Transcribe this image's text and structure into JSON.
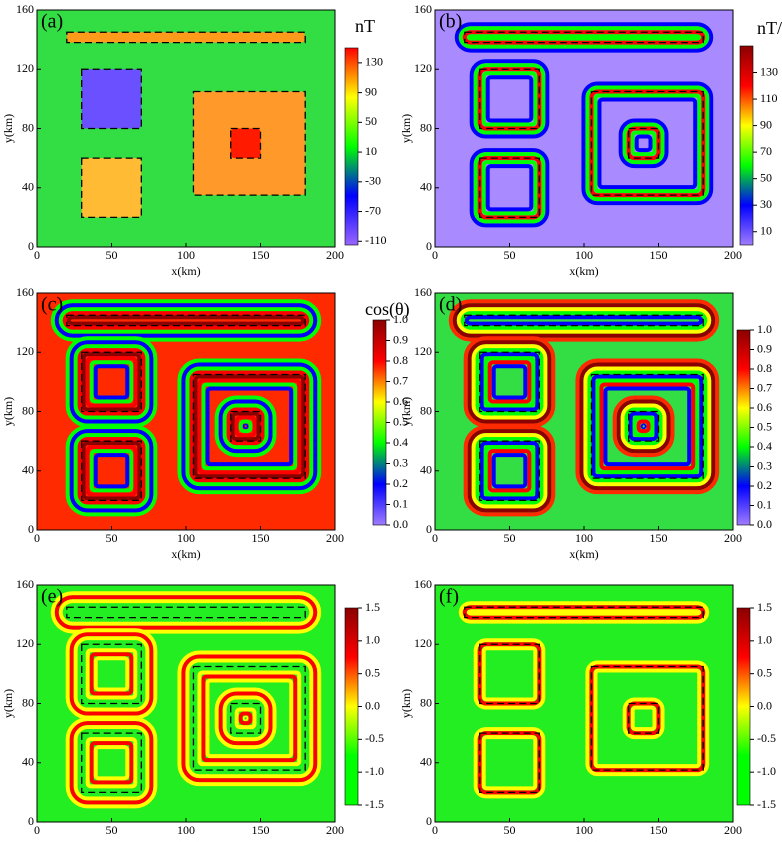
{
  "chart_data": [
    {
      "type": "heatmap",
      "label": "(a)",
      "colorbar_title": "nT",
      "xlabel": "x(km)",
      "ylabel": "y(km)",
      "xlim": [
        0,
        200
      ],
      "ylim": [
        0,
        160
      ],
      "xticks": [
        0,
        50,
        100,
        150,
        200
      ],
      "yticks": [
        0,
        40,
        80,
        120,
        160
      ],
      "clim": [
        -115,
        150
      ],
      "cticks": [
        -110,
        -70,
        -30,
        10,
        50,
        90,
        130
      ],
      "colormap": [
        "#9966ff",
        "#0000ff",
        "#00ff00",
        "#ffff00",
        "#ff0000"
      ],
      "background": "#33dd44",
      "outlines": [
        {
          "x": [
            20,
            180
          ],
          "y": [
            138,
            145
          ]
        },
        {
          "x": [
            30,
            70
          ],
          "y": [
            80,
            120
          ]
        },
        {
          "x": [
            30,
            70
          ],
          "y": [
            20,
            60
          ]
        },
        {
          "x": [
            105,
            180
          ],
          "y": [
            35,
            105
          ]
        },
        {
          "x": [
            130,
            150
          ],
          "y": [
            60,
            80
          ]
        }
      ],
      "fills": [
        "#ff9a1a",
        "#6a50ff",
        "#ffbb33",
        "#ff9a2a",
        "#ff1a00"
      ],
      "rings": []
    },
    {
      "type": "heatmap",
      "label": "(b)",
      "colorbar_title": "nT/km",
      "xlabel": "x(km)",
      "ylabel": "y(km)",
      "xlim": [
        0,
        200
      ],
      "ylim": [
        0,
        160
      ],
      "xticks": [
        0,
        50,
        100,
        150,
        200
      ],
      "yticks": [
        0,
        40,
        80,
        120,
        160
      ],
      "clim": [
        0,
        150
      ],
      "cticks": [
        10,
        30,
        50,
        70,
        90,
        110,
        130
      ],
      "colormap": [
        "#a07cff",
        "#0000ff",
        "#00ff00",
        "#ffff00",
        "#ff0000",
        "#8b0000"
      ],
      "background": "#a98bff",
      "outlines": [
        {
          "x": [
            20,
            180
          ],
          "y": [
            138,
            145
          ]
        },
        {
          "x": [
            30,
            70
          ],
          "y": [
            80,
            120
          ]
        },
        {
          "x": [
            30,
            70
          ],
          "y": [
            20,
            60
          ]
        },
        {
          "x": [
            105,
            180
          ],
          "y": [
            35,
            105
          ]
        },
        {
          "x": [
            130,
            150
          ],
          "y": [
            60,
            80
          ]
        }
      ],
      "fills": [],
      "rings": [
        "#0000ff",
        "#00ff00",
        "#ff0000",
        "#00ff00",
        "#0000ff"
      ]
    },
    {
      "type": "heatmap",
      "label": "(c)",
      "colorbar_title": "cos(θ)",
      "xlabel": "x(km)",
      "ylabel": "y(km)",
      "xlim": [
        0,
        200
      ],
      "ylim": [
        0,
        160
      ],
      "xticks": [
        0,
        50,
        100,
        150,
        200
      ],
      "yticks": [
        0,
        40,
        80,
        120,
        160
      ],
      "clim": [
        0,
        1
      ],
      "cticks": [
        {
          "value": 0,
          "label": "0.0"
        },
        0.1,
        0.2,
        0.3,
        0.4,
        0.5,
        0.6,
        0.7,
        0.8,
        0.9,
        {
          "value": 1,
          "label": "1.0"
        }
      ],
      "colormap": [
        "#a07cff",
        "#0000ff",
        "#00ff00",
        "#ffff00",
        "#ff0000",
        "#8b0000"
      ],
      "background": "#ff2a00",
      "outlines": [
        {
          "x": [
            20,
            180
          ],
          "y": [
            138,
            145
          ]
        },
        {
          "x": [
            30,
            70
          ],
          "y": [
            80,
            120
          ]
        },
        {
          "x": [
            30,
            70
          ],
          "y": [
            20,
            60
          ]
        },
        {
          "x": [
            105,
            180
          ],
          "y": [
            35,
            105
          ]
        },
        {
          "x": [
            130,
            150
          ],
          "y": [
            60,
            80
          ]
        }
      ],
      "fills": [],
      "rings": [
        "#00ff00",
        "#0000ff",
        "#00ff00",
        "#ff0000",
        "#8b0000",
        "#ff0000",
        "#00ff00",
        "#0000ff"
      ]
    },
    {
      "type": "heatmap",
      "label": "(d)",
      "xlabel": "x(km)",
      "ylabel": "y(km)",
      "xlim": [
        0,
        200
      ],
      "ylim": [
        0,
        160
      ],
      "xticks": [
        0,
        50,
        100,
        150,
        200
      ],
      "yticks": [
        0,
        40,
        80,
        120,
        160
      ],
      "clim": [
        0,
        1
      ],
      "cticks": [
        {
          "value": 0,
          "label": "0.0"
        },
        0.1,
        0.2,
        0.3,
        0.4,
        0.5,
        0.6,
        0.7,
        0.8,
        0.9,
        {
          "value": 1,
          "label": "1.0"
        }
      ],
      "colormap": [
        "#a07cff",
        "#0000ff",
        "#00ff00",
        "#ffff00",
        "#ff0000",
        "#8b0000"
      ],
      "background": "#33dd44",
      "outlines": [
        {
          "x": [
            20,
            180
          ],
          "y": [
            138,
            145
          ]
        },
        {
          "x": [
            30,
            70
          ],
          "y": [
            80,
            120
          ]
        },
        {
          "x": [
            30,
            70
          ],
          "y": [
            20,
            60
          ]
        },
        {
          "x": [
            105,
            180
          ],
          "y": [
            35,
            105
          ]
        },
        {
          "x": [
            130,
            150
          ],
          "y": [
            60,
            80
          ]
        }
      ],
      "fills": [],
      "rings": [
        "#ff2a00",
        "#8b0000",
        "#ffff00",
        "#00ff00",
        "#0000ff",
        "#00ff00",
        "#ff0000",
        "#0000ff"
      ]
    },
    {
      "type": "heatmap",
      "label": "(e)",
      "xlabel": "x(km)",
      "ylabel": "y(km)",
      "xlim": [
        0,
        200
      ],
      "ylim": [
        0,
        160
      ],
      "xticks": [
        0,
        50,
        100,
        150,
        200
      ],
      "yticks": [
        0,
        40,
        80,
        120,
        160
      ],
      "clim": [
        -1.5,
        1.5
      ],
      "cticks": [
        -1.5,
        {
          "value": -1,
          "label": "-1.0"
        },
        -0.5,
        {
          "value": 0,
          "label": "0.0"
        },
        0.5,
        {
          "value": 1,
          "label": "1.0"
        },
        1.5
      ],
      "colormap": [
        "#00ff00",
        "#00ff00",
        "#ffff00",
        "#ff0000",
        "#8b0000"
      ],
      "background": "#22ee22",
      "outlines": [
        {
          "x": [
            20,
            180
          ],
          "y": [
            138,
            145
          ]
        },
        {
          "x": [
            30,
            70
          ],
          "y": [
            80,
            120
          ]
        },
        {
          "x": [
            30,
            70
          ],
          "y": [
            20,
            60
          ]
        },
        {
          "x": [
            105,
            180
          ],
          "y": [
            35,
            105
          ]
        },
        {
          "x": [
            130,
            150
          ],
          "y": [
            60,
            80
          ]
        }
      ],
      "fills": [],
      "rings": [
        "#ffff00",
        "#ff0000",
        "#ffff00",
        "#22ee22",
        "#22ee22",
        "#ffff00",
        "#ff0000",
        "#ffff00"
      ]
    },
    {
      "type": "heatmap",
      "label": "(f)",
      "xlabel": "x(km)",
      "ylabel": "y(km)",
      "xlim": [
        0,
        200
      ],
      "ylim": [
        0,
        160
      ],
      "xticks": [
        0,
        50,
        100,
        150,
        200
      ],
      "yticks": [
        0,
        40,
        80,
        120,
        160
      ],
      "clim": [
        -1.5,
        1.5
      ],
      "cticks": [
        -1.5,
        {
          "value": -1,
          "label": "-1.0"
        },
        -0.5,
        {
          "value": 0,
          "label": "0.0"
        },
        0.5,
        {
          "value": 1,
          "label": "1.0"
        },
        1.5
      ],
      "colormap": [
        "#00ff00",
        "#00ff00",
        "#ffff00",
        "#ff0000",
        "#8b0000"
      ],
      "background": "#22ee22",
      "outlines": [
        {
          "x": [
            20,
            180
          ],
          "y": [
            138,
            145
          ]
        },
        {
          "x": [
            30,
            70
          ],
          "y": [
            80,
            120
          ]
        },
        {
          "x": [
            30,
            70
          ],
          "y": [
            20,
            60
          ]
        },
        {
          "x": [
            105,
            180
          ],
          "y": [
            35,
            105
          ]
        },
        {
          "x": [
            130,
            150
          ],
          "y": [
            60,
            80
          ]
        }
      ],
      "fills": [],
      "rings": [
        "#ffff00",
        "#ff0000",
        "#ffff00"
      ]
    }
  ]
}
